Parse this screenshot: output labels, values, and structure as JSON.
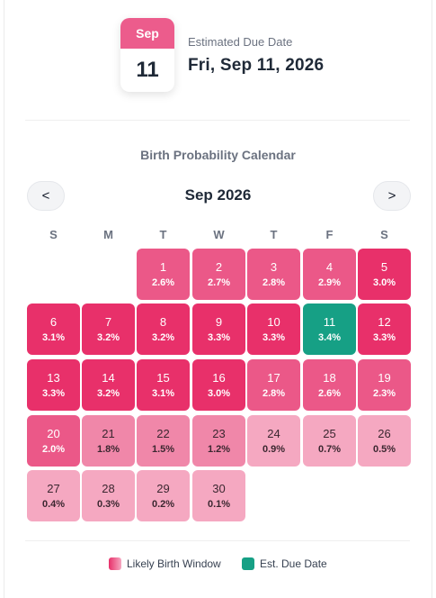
{
  "due_date": {
    "month_abbr": "Sep",
    "day": "11",
    "label": "Estimated Due Date",
    "full_date": "Fri, Sep 11, 2026"
  },
  "calendar": {
    "title": "Birth Probability Calendar",
    "month_label": "Sep 2026",
    "prev_label": "<",
    "next_label": ">",
    "weekdays": [
      "S",
      "M",
      "T",
      "W",
      "T",
      "F",
      "S"
    ],
    "days": [
      {
        "day": "1",
        "pct": "2.6%",
        "level": "2"
      },
      {
        "day": "2",
        "pct": "2.7%",
        "level": "2"
      },
      {
        "day": "3",
        "pct": "2.8%",
        "level": "2"
      },
      {
        "day": "4",
        "pct": "2.9%",
        "level": "2"
      },
      {
        "day": "5",
        "pct": "3.0%",
        "level": "1"
      },
      {
        "day": "6",
        "pct": "3.1%",
        "level": "1"
      },
      {
        "day": "7",
        "pct": "3.2%",
        "level": "1"
      },
      {
        "day": "8",
        "pct": "3.2%",
        "level": "1"
      },
      {
        "day": "9",
        "pct": "3.3%",
        "level": "1"
      },
      {
        "day": "10",
        "pct": "3.3%",
        "level": "1"
      },
      {
        "day": "11",
        "pct": "3.4%",
        "level": "due"
      },
      {
        "day": "12",
        "pct": "3.3%",
        "level": "1"
      },
      {
        "day": "13",
        "pct": "3.3%",
        "level": "1"
      },
      {
        "day": "14",
        "pct": "3.2%",
        "level": "1"
      },
      {
        "day": "15",
        "pct": "3.1%",
        "level": "1"
      },
      {
        "day": "16",
        "pct": "3.0%",
        "level": "1"
      },
      {
        "day": "17",
        "pct": "2.8%",
        "level": "2"
      },
      {
        "day": "18",
        "pct": "2.6%",
        "level": "2"
      },
      {
        "day": "19",
        "pct": "2.3%",
        "level": "2"
      },
      {
        "day": "20",
        "pct": "2.0%",
        "level": "2"
      },
      {
        "day": "21",
        "pct": "1.8%",
        "level": "3"
      },
      {
        "day": "22",
        "pct": "1.5%",
        "level": "3"
      },
      {
        "day": "23",
        "pct": "1.2%",
        "level": "3"
      },
      {
        "day": "24",
        "pct": "0.9%",
        "level": "4"
      },
      {
        "day": "25",
        "pct": "0.7%",
        "level": "4"
      },
      {
        "day": "26",
        "pct": "0.5%",
        "level": "4"
      },
      {
        "day": "27",
        "pct": "0.4%",
        "level": "4"
      },
      {
        "day": "28",
        "pct": "0.3%",
        "level": "4"
      },
      {
        "day": "29",
        "pct": "0.2%",
        "level": "4"
      },
      {
        "day": "30",
        "pct": "0.1%",
        "level": "4"
      }
    ]
  },
  "legend": {
    "likely_label": "Likely Birth Window",
    "due_label": "Est. Due Date"
  },
  "colors": {
    "accent_pink": "#ec5c8c",
    "high_probability": "#e8306a",
    "due_date_teal": "#16a085"
  }
}
